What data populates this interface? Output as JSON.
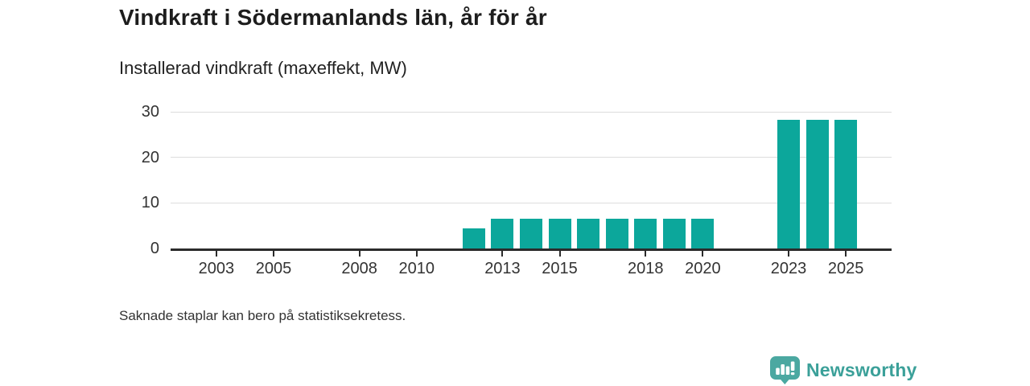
{
  "header": {
    "title": "Vindkraft i Södermanlands län, år för år",
    "subtitle": "Installerad vindkraft (maxeffekt, MW)"
  },
  "chart_data": {
    "type": "bar",
    "title": "Vindkraft i Södermanlands län, år för år",
    "subtitle": "Installerad vindkraft (maxeffekt, MW)",
    "unit": "MW",
    "series": [
      {
        "name": "Installerad vindkraft (maxeffekt, MW)",
        "points": [
          {
            "x": 2012,
            "y": 4.4
          },
          {
            "x": 2013,
            "y": 6.6
          },
          {
            "x": 2014,
            "y": 6.6
          },
          {
            "x": 2015,
            "y": 6.6
          },
          {
            "x": 2016,
            "y": 6.6
          },
          {
            "x": 2017,
            "y": 6.6
          },
          {
            "x": 2018,
            "y": 6.6
          },
          {
            "x": 2019,
            "y": 6.6
          },
          {
            "x": 2020,
            "y": 6.6
          },
          {
            "x": 2023,
            "y": 28.2
          },
          {
            "x": 2024,
            "y": 28.2
          },
          {
            "x": 2025,
            "y": 28.2
          }
        ]
      }
    ],
    "missing_x": [
      2002,
      2003,
      2004,
      2005,
      2006,
      2007,
      2008,
      2009,
      2010,
      2011,
      2021,
      2022
    ],
    "x_domain": [
      2001.4,
      2026.6
    ],
    "ylim": [
      0,
      30
    ],
    "y_ticks": [
      0,
      10,
      20,
      30
    ],
    "x_ticks": [
      2003,
      2005,
      2008,
      2010,
      2013,
      2015,
      2018,
      2020,
      2023,
      2025
    ],
    "xlabel": "",
    "ylabel": "",
    "grid": "horizontal",
    "legend_position": "none",
    "bar_color": "#0ca79b",
    "axis_color": "#2b2b2b",
    "gridline_color": "#dddddd",
    "tick_label_color": "#333333"
  },
  "footer": {
    "note": "Saknade staplar kan bero på statistiksekretess."
  },
  "branding": {
    "logo_text": "Newsworthy",
    "logo_icon": "bar-chart-speech-bubble",
    "logo_bubble_color": "#4ba8a1",
    "logo_text_color": "#3ba099"
  }
}
